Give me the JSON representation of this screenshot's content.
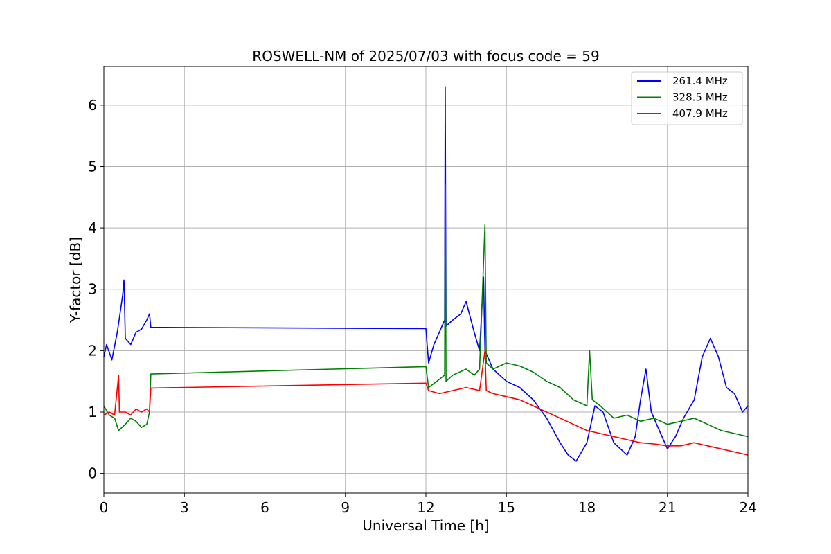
{
  "chart_data": {
    "type": "line",
    "title": "ROSWELL-NM of 2025/07/03 with focus code = 59",
    "xlabel": "Universal Time [h]",
    "ylabel": "Y-factor [dB]",
    "xlim": [
      0,
      24
    ],
    "ylim": [
      -0.32,
      6.63
    ],
    "xticks": [
      0,
      3,
      6,
      9,
      12,
      15,
      18,
      21,
      24
    ],
    "yticks": [
      0,
      1,
      2,
      3,
      4,
      5,
      6
    ],
    "grid": true,
    "legend_position": "top-right",
    "series": [
      {
        "name": "261.4 MHz",
        "color": "#0000ff",
        "points": [
          [
            0,
            1.9
          ],
          [
            0.1,
            2.1
          ],
          [
            0.3,
            1.85
          ],
          [
            0.5,
            2.3
          ],
          [
            0.6,
            2.6
          ],
          [
            0.7,
            2.9
          ],
          [
            0.75,
            3.15
          ],
          [
            0.8,
            2.2
          ],
          [
            1.0,
            2.1
          ],
          [
            1.2,
            2.3
          ],
          [
            1.4,
            2.35
          ],
          [
            1.6,
            2.5
          ],
          [
            1.7,
            2.6
          ],
          [
            1.75,
            2.38
          ],
          [
            12.0,
            2.36
          ],
          [
            12.1,
            1.8
          ],
          [
            12.3,
            2.1
          ],
          [
            12.5,
            2.3
          ],
          [
            12.7,
            2.5
          ],
          [
            12.72,
            6.3
          ],
          [
            12.75,
            2.4
          ],
          [
            13.0,
            2.5
          ],
          [
            13.3,
            2.6
          ],
          [
            13.5,
            2.8
          ],
          [
            13.8,
            2.3
          ],
          [
            14.0,
            2.0
          ],
          [
            14.15,
            3.2
          ],
          [
            14.2,
            2.0
          ],
          [
            14.5,
            1.7
          ],
          [
            15.0,
            1.5
          ],
          [
            15.5,
            1.4
          ],
          [
            16.0,
            1.2
          ],
          [
            16.5,
            0.9
          ],
          [
            17.0,
            0.5
          ],
          [
            17.3,
            0.3
          ],
          [
            17.6,
            0.2
          ],
          [
            18.0,
            0.5
          ],
          [
            18.3,
            1.1
          ],
          [
            18.6,
            1.0
          ],
          [
            19.0,
            0.5
          ],
          [
            19.5,
            0.3
          ],
          [
            19.8,
            0.6
          ],
          [
            20.0,
            1.2
          ],
          [
            20.2,
            1.7
          ],
          [
            20.4,
            1.0
          ],
          [
            20.8,
            0.6
          ],
          [
            21.0,
            0.4
          ],
          [
            21.3,
            0.6
          ],
          [
            21.6,
            0.9
          ],
          [
            22.0,
            1.2
          ],
          [
            22.3,
            1.9
          ],
          [
            22.6,
            2.2
          ],
          [
            22.9,
            1.9
          ],
          [
            23.2,
            1.4
          ],
          [
            23.5,
            1.3
          ],
          [
            23.8,
            1.0
          ],
          [
            24.0,
            1.1
          ]
        ]
      },
      {
        "name": "328.5 MHz",
        "color": "#008000",
        "points": [
          [
            0,
            1.1
          ],
          [
            0.2,
            0.95
          ],
          [
            0.4,
            0.9
          ],
          [
            0.55,
            0.7
          ],
          [
            0.8,
            0.8
          ],
          [
            1.0,
            0.9
          ],
          [
            1.2,
            0.85
          ],
          [
            1.4,
            0.75
          ],
          [
            1.6,
            0.8
          ],
          [
            1.7,
            1.0
          ],
          [
            1.75,
            1.62
          ],
          [
            12.0,
            1.74
          ],
          [
            12.1,
            1.4
          ],
          [
            12.4,
            1.5
          ],
          [
            12.7,
            1.6
          ],
          [
            12.72,
            4.7
          ],
          [
            12.75,
            1.5
          ],
          [
            13.0,
            1.6
          ],
          [
            13.5,
            1.7
          ],
          [
            13.8,
            1.6
          ],
          [
            14.0,
            1.7
          ],
          [
            14.2,
            4.05
          ],
          [
            14.25,
            1.8
          ],
          [
            14.5,
            1.7
          ],
          [
            15.0,
            1.8
          ],
          [
            15.5,
            1.75
          ],
          [
            16.0,
            1.65
          ],
          [
            16.5,
            1.5
          ],
          [
            17.0,
            1.4
          ],
          [
            17.5,
            1.2
          ],
          [
            18.0,
            1.1
          ],
          [
            18.1,
            2.0
          ],
          [
            18.2,
            1.2
          ],
          [
            18.5,
            1.1
          ],
          [
            19.0,
            0.9
          ],
          [
            19.5,
            0.95
          ],
          [
            20.0,
            0.85
          ],
          [
            20.5,
            0.9
          ],
          [
            21.0,
            0.8
          ],
          [
            21.5,
            0.85
          ],
          [
            22.0,
            0.9
          ],
          [
            22.5,
            0.8
          ],
          [
            23.0,
            0.7
          ],
          [
            23.5,
            0.65
          ],
          [
            24.0,
            0.6
          ]
        ]
      },
      {
        "name": "407.9 MHz",
        "color": "#ff0000",
        "points": [
          [
            0,
            0.95
          ],
          [
            0.2,
            1.0
          ],
          [
            0.4,
            0.95
          ],
          [
            0.55,
            1.6
          ],
          [
            0.58,
            1.0
          ],
          [
            0.8,
            1.0
          ],
          [
            1.0,
            0.95
          ],
          [
            1.2,
            1.05
          ],
          [
            1.4,
            1.0
          ],
          [
            1.6,
            1.05
          ],
          [
            1.7,
            1.0
          ],
          [
            1.75,
            1.39
          ],
          [
            12.0,
            1.47
          ],
          [
            12.1,
            1.35
          ],
          [
            12.5,
            1.3
          ],
          [
            13.0,
            1.35
          ],
          [
            13.5,
            1.4
          ],
          [
            14.0,
            1.35
          ],
          [
            14.2,
            2.0
          ],
          [
            14.25,
            1.35
          ],
          [
            14.5,
            1.3
          ],
          [
            15.0,
            1.25
          ],
          [
            15.5,
            1.2
          ],
          [
            16.0,
            1.1
          ],
          [
            16.5,
            1.0
          ],
          [
            17.0,
            0.9
          ],
          [
            17.5,
            0.8
          ],
          [
            18.0,
            0.7
          ],
          [
            18.5,
            0.65
          ],
          [
            19.0,
            0.6
          ],
          [
            19.5,
            0.55
          ],
          [
            20.0,
            0.5
          ],
          [
            20.5,
            0.48
          ],
          [
            21.0,
            0.45
          ],
          [
            21.5,
            0.45
          ],
          [
            22.0,
            0.5
          ],
          [
            22.5,
            0.45
          ],
          [
            23.0,
            0.4
          ],
          [
            23.5,
            0.35
          ],
          [
            24.0,
            0.3
          ]
        ]
      }
    ]
  }
}
